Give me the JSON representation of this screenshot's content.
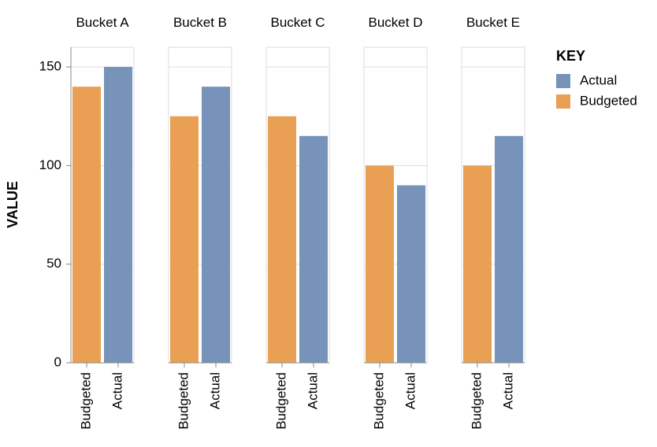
{
  "chart_data": {
    "type": "bar",
    "categories": [
      "Bucket A",
      "Bucket B",
      "Bucket C",
      "Bucket D",
      "Bucket E"
    ],
    "series": [
      {
        "name": "Actual",
        "color": "#7793b9",
        "values": [
          150,
          140,
          115,
          90,
          115
        ]
      },
      {
        "name": "Budgeted",
        "color": "#e9a055",
        "values": [
          140,
          125,
          125,
          100,
          100
        ]
      }
    ],
    "y_label": "VALUE",
    "legend_title": "KEY",
    "ylim": [
      0,
      160
    ],
    "yticks": [
      0,
      50,
      100,
      150
    ],
    "grid": true,
    "legend": "right"
  }
}
